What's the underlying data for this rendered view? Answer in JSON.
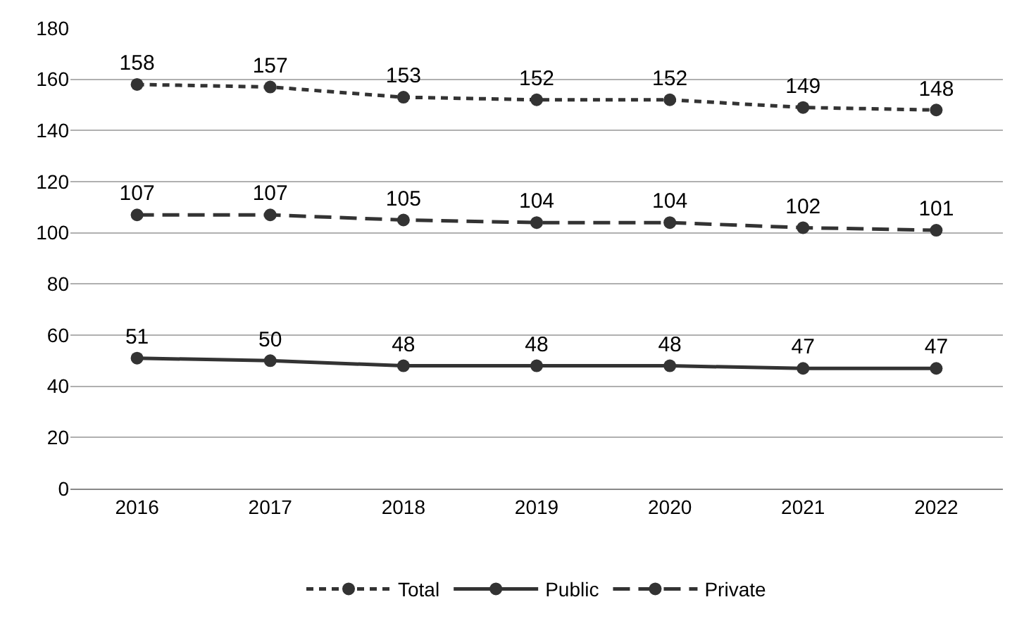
{
  "chart_data": {
    "type": "line",
    "categories": [
      "2016",
      "2017",
      "2018",
      "2019",
      "2020",
      "2021",
      "2022"
    ],
    "series": [
      {
        "name": "Total",
        "color": "#333333",
        "line_style": "dotted",
        "values": [
          158,
          157,
          153,
          152,
          152,
          149,
          148
        ]
      },
      {
        "name": "Public",
        "color": "#333333",
        "line_style": "solid",
        "values": [
          51,
          50,
          48,
          48,
          48,
          47,
          47
        ]
      },
      {
        "name": "Private",
        "color": "#333333",
        "line_style": "dashed",
        "values": [
          107,
          107,
          105,
          104,
          104,
          102,
          101
        ]
      }
    ],
    "ylim": [
      0,
      180
    ],
    "yticks": [
      0,
      20,
      40,
      60,
      80,
      100,
      120,
      140,
      160,
      180
    ],
    "grid": "y",
    "legend": "bottom",
    "marker": "circle",
    "data_labels": true
  }
}
